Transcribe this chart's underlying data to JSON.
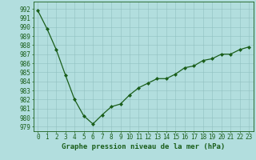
{
  "x": [
    0,
    1,
    2,
    3,
    4,
    5,
    6,
    7,
    8,
    9,
    10,
    11,
    12,
    13,
    14,
    15,
    16,
    17,
    18,
    19,
    20,
    21,
    22,
    23
  ],
  "y": [
    991.8,
    989.8,
    987.5,
    984.7,
    982.0,
    980.2,
    979.3,
    980.3,
    981.2,
    981.5,
    982.5,
    983.3,
    983.8,
    984.3,
    984.3,
    984.8,
    985.5,
    985.7,
    986.3,
    986.5,
    987.0,
    987.0,
    987.5,
    987.8
  ],
  "line_color": "#1a5e1a",
  "marker": "D",
  "marker_size": 2.0,
  "bg_color": "#b2dede",
  "grid_color": "#90c0c0",
  "ylabel_ticks": [
    979,
    980,
    981,
    982,
    983,
    984,
    985,
    986,
    987,
    988,
    989,
    990,
    991,
    992
  ],
  "ylim": [
    978.5,
    992.8
  ],
  "xlim": [
    -0.5,
    23.5
  ],
  "xlabel": "Graphe pression niveau de la mer (hPa)",
  "xlabel_fontsize": 6.5,
  "tick_fontsize": 5.5
}
